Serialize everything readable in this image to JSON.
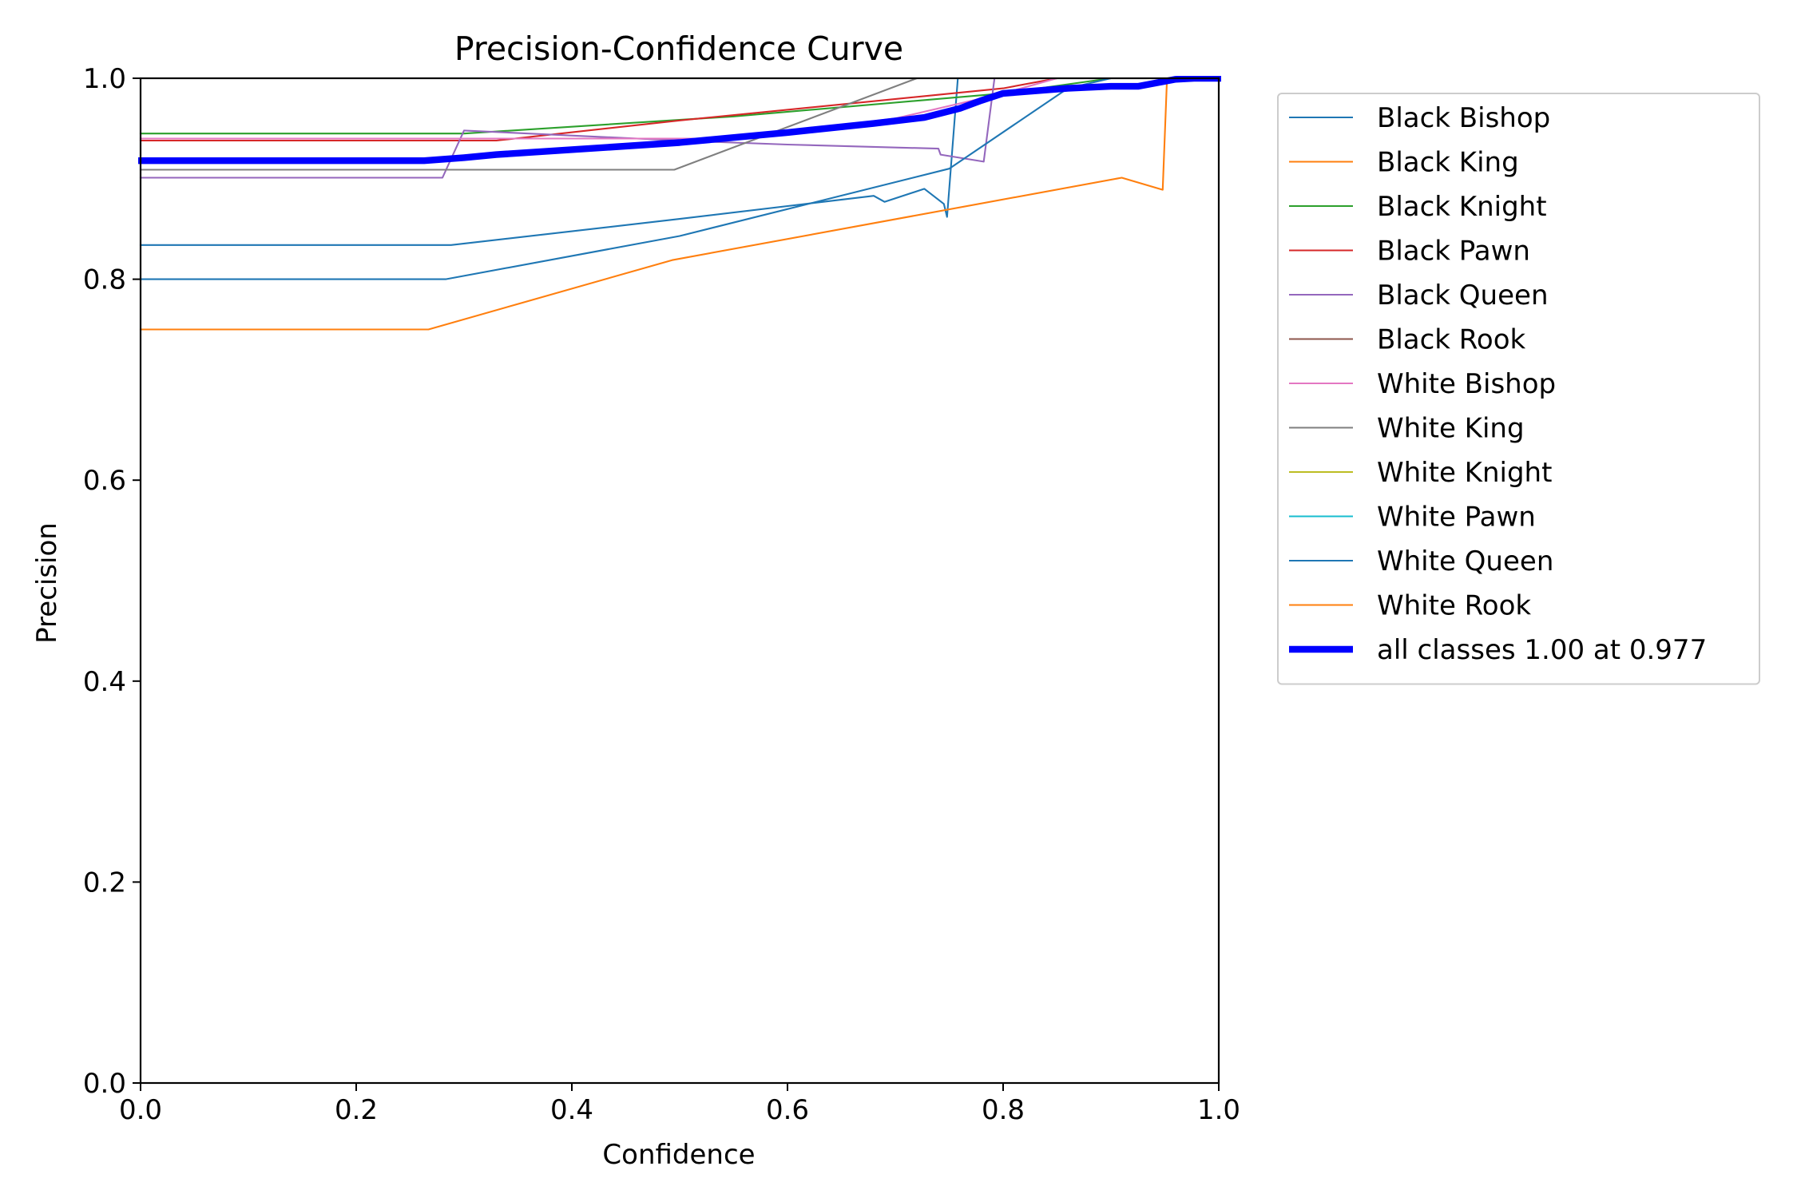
{
  "chart_data": {
    "type": "line",
    "title": "Precision-Confidence Curve",
    "xlabel": "Confidence",
    "ylabel": "Precision",
    "xlim": [
      0,
      1
    ],
    "ylim": [
      0,
      1
    ],
    "xticks": [
      "0.0",
      "0.2",
      "0.4",
      "0.6",
      "0.8",
      "1.0"
    ],
    "yticks": [
      "0.0",
      "0.2",
      "0.4",
      "0.6",
      "0.8",
      "1.0"
    ],
    "grid": false,
    "legend_position": "outside-right",
    "series": [
      {
        "name": "Black Bishop",
        "color": "#1f77b4",
        "width": 1,
        "points": [
          [
            0,
            0.834
          ],
          [
            0.288,
            0.834
          ],
          [
            0.5,
            0.86
          ],
          [
            0.68,
            0.883
          ],
          [
            0.69,
            0.877
          ],
          [
            0.727,
            0.89
          ],
          [
            0.745,
            0.875
          ],
          [
            0.748,
            0.862
          ],
          [
            0.758,
            1.0
          ],
          [
            1.0,
            1.0
          ]
        ]
      },
      {
        "name": "Black King",
        "color": "#ff7f0e",
        "width": 1,
        "points": [
          [
            0,
            0.75
          ],
          [
            0.267,
            0.75
          ],
          [
            0.493,
            0.819
          ],
          [
            0.91,
            0.901
          ],
          [
            0.948,
            0.889
          ],
          [
            0.952,
            1.0
          ],
          [
            1.0,
            1.0
          ]
        ]
      },
      {
        "name": "Black Knight",
        "color": "#2ca02c",
        "width": 1,
        "points": [
          [
            0,
            0.945
          ],
          [
            0.3,
            0.945
          ],
          [
            0.55,
            0.962
          ],
          [
            0.8,
            0.985
          ],
          [
            0.9,
            1.0
          ],
          [
            1.0,
            1.0
          ]
        ]
      },
      {
        "name": "Black Pawn",
        "color": "#d62728",
        "width": 1,
        "points": [
          [
            0,
            0.938
          ],
          [
            0.33,
            0.938
          ],
          [
            0.5,
            0.958
          ],
          [
            0.8,
            0.99
          ],
          [
            0.85,
            1.0
          ],
          [
            1.0,
            1.0
          ]
        ]
      },
      {
        "name": "Black Queen",
        "color": "#9467bd",
        "width": 1,
        "points": [
          [
            0,
            0.901
          ],
          [
            0.28,
            0.901
          ],
          [
            0.3,
            0.948
          ],
          [
            0.5,
            0.938
          ],
          [
            0.6,
            0.934
          ],
          [
            0.74,
            0.93
          ],
          [
            0.742,
            0.924
          ],
          [
            0.782,
            0.917
          ],
          [
            0.792,
            1.0
          ],
          [
            1.0,
            1.0
          ]
        ]
      },
      {
        "name": "Black Rook",
        "color": "#8c564b",
        "width": 1,
        "points": [
          [
            0,
            1.0
          ],
          [
            1.0,
            1.0
          ]
        ]
      },
      {
        "name": "White Bishop",
        "color": "#e377c2",
        "width": 1,
        "points": [
          [
            0,
            0.94
          ],
          [
            0.55,
            0.94
          ],
          [
            0.7,
            0.96
          ],
          [
            0.8,
            0.985
          ],
          [
            0.85,
            1.0
          ],
          [
            1.0,
            1.0
          ]
        ]
      },
      {
        "name": "White King",
        "color": "#7f7f7f",
        "width": 1,
        "points": [
          [
            0,
            0.909
          ],
          [
            0.495,
            0.909
          ],
          [
            0.72,
            1.0
          ],
          [
            1.0,
            1.0
          ]
        ]
      },
      {
        "name": "White Knight",
        "color": "#bcbd22",
        "width": 1,
        "points": [
          [
            0,
            1.0
          ],
          [
            1.0,
            1.0
          ]
        ]
      },
      {
        "name": "White Pawn",
        "color": "#17becf",
        "width": 1,
        "points": [
          [
            0,
            1.0
          ],
          [
            1.0,
            1.0
          ]
        ]
      },
      {
        "name": "White Queen",
        "color": "#1f77b4",
        "width": 1,
        "points": [
          [
            0,
            0.8
          ],
          [
            0.283,
            0.8
          ],
          [
            0.5,
            0.843
          ],
          [
            0.75,
            0.91
          ],
          [
            0.86,
            0.99
          ],
          [
            0.9,
            1.0
          ],
          [
            1.0,
            1.0
          ]
        ]
      },
      {
        "name": "White Rook",
        "color": "#ff7f0e",
        "width": 1,
        "points": [
          [
            0,
            1.0
          ],
          [
            1.0,
            1.0
          ]
        ]
      },
      {
        "name": "all classes 1.00 at 0.977",
        "color": "#0000ff",
        "width": 4,
        "points": [
          [
            0,
            0.918
          ],
          [
            0.263,
            0.918
          ],
          [
            0.3,
            0.921
          ],
          [
            0.33,
            0.924
          ],
          [
            0.5,
            0.936
          ],
          [
            0.6,
            0.946
          ],
          [
            0.68,
            0.955
          ],
          [
            0.727,
            0.961
          ],
          [
            0.76,
            0.97
          ],
          [
            0.78,
            0.978
          ],
          [
            0.8,
            0.985
          ],
          [
            0.86,
            0.99
          ],
          [
            0.9,
            0.992
          ],
          [
            0.925,
            0.992
          ],
          [
            0.96,
            0.999
          ],
          [
            0.977,
            1.0
          ],
          [
            1.0,
            1.0
          ]
        ]
      }
    ]
  }
}
